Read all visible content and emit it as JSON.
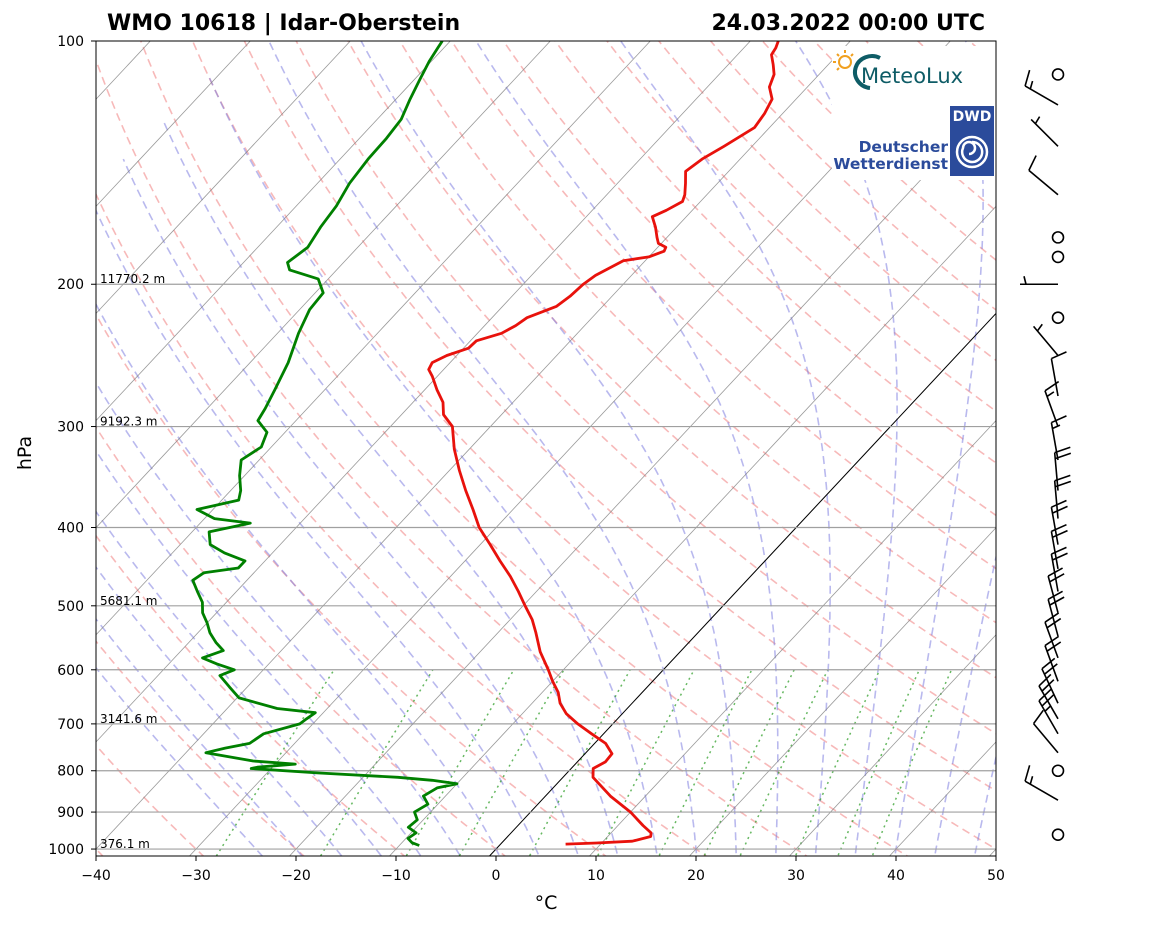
{
  "colors": {
    "temperature": "#e8120c",
    "dewpoint": "#008000",
    "isotherm": "#808080",
    "dry_adiabat": "#f08080",
    "moist_adiabat": "#8080e0",
    "mixing_ratio": "#33a02c",
    "zero_isotherm": "#000000"
  },
  "chart_data": {
    "type": "line",
    "diagram": "skew-T log-p",
    "title_left": "WMO 10618 | Idar-Oberstein",
    "title_right": "24.03.2022 00:00 UTC",
    "xlabel": "°C",
    "ylabel": "hPa",
    "xlim": [
      -40,
      50
    ],
    "ylim": [
      1020,
      100
    ],
    "y_scale": "log",
    "grid": true,
    "x_ticks": [
      "−40",
      "−30",
      "−20",
      "−10",
      "0",
      "10",
      "20",
      "30",
      "40",
      "50"
    ],
    "y_ticks": [
      "100",
      "200",
      "300",
      "400",
      "500",
      "600",
      "700",
      "800",
      "900",
      "1000"
    ],
    "height_labels": [
      {
        "p": 200,
        "text": "11770.2 m"
      },
      {
        "p": 300,
        "text": "9192.3 m"
      },
      {
        "p": 500,
        "text": "5681.1 m"
      },
      {
        "p": 700,
        "text": "3141.6 m"
      },
      {
        "p": 1000,
        "text": "376.1 m"
      }
    ],
    "series": [
      {
        "key": "temperature",
        "points": [
          [
            986,
            6.5
          ],
          [
            983,
            9.5
          ],
          [
            978,
            12.9
          ],
          [
            965,
            14.3
          ],
          [
            955,
            14.0
          ],
          [
            935,
            12.5
          ],
          [
            900,
            10.0
          ],
          [
            860,
            6.5
          ],
          [
            815,
            3.0
          ],
          [
            795,
            2.2
          ],
          [
            780,
            2.8
          ],
          [
            762,
            2.7
          ],
          [
            740,
            1.1
          ],
          [
            720,
            -1.2
          ],
          [
            700,
            -3.5
          ],
          [
            680,
            -5.6
          ],
          [
            660,
            -7.2
          ],
          [
            640,
            -8.4
          ],
          [
            620,
            -10.0
          ],
          [
            600,
            -11.5
          ],
          [
            570,
            -14.0
          ],
          [
            540,
            -16.2
          ],
          [
            520,
            -17.8
          ],
          [
            500,
            -19.8
          ],
          [
            480,
            -21.8
          ],
          [
            460,
            -24.0
          ],
          [
            440,
            -26.5
          ],
          [
            420,
            -29.0
          ],
          [
            400,
            -31.7
          ],
          [
            380,
            -34.0
          ],
          [
            360,
            -36.5
          ],
          [
            340,
            -39.0
          ],
          [
            320,
            -41.5
          ],
          [
            300,
            -43.8
          ],
          [
            290,
            -45.8
          ],
          [
            280,
            -47.0
          ],
          [
            270,
            -48.8
          ],
          [
            260,
            -50.5
          ],
          [
            255,
            -51.5
          ],
          [
            250,
            -51.8
          ],
          [
            245,
            -51.0
          ],
          [
            240,
            -49.5
          ],
          [
            235,
            -49.4
          ],
          [
            230,
            -47.6
          ],
          [
            225,
            -46.9
          ],
          [
            220,
            -46.5
          ],
          [
            213,
            -44.6
          ],
          [
            207,
            -44.2
          ],
          [
            200,
            -44.0
          ],
          [
            195,
            -43.6
          ],
          [
            187,
            -42.2
          ],
          [
            185,
            -40.0
          ],
          [
            182,
            -39.0
          ],
          [
            180,
            -39.2
          ],
          [
            178,
            -40.3
          ],
          [
            175,
            -41.0
          ],
          [
            170,
            -42.1
          ],
          [
            165,
            -43.4
          ],
          [
            162,
            -42.6
          ],
          [
            158,
            -41.8
          ],
          [
            155,
            -42.2
          ],
          [
            150,
            -43.2
          ],
          [
            145,
            -44.3
          ],
          [
            140,
            -43.8
          ],
          [
            135,
            -42.8
          ],
          [
            128,
            -41.5
          ],
          [
            123,
            -41.8
          ],
          [
            118,
            -42.4
          ],
          [
            114,
            -43.8
          ],
          [
            110,
            -44.5
          ],
          [
            107,
            -45.5
          ],
          [
            104,
            -46.6
          ],
          [
            102,
            -46.8
          ],
          [
            100,
            -47.2
          ]
        ]
      },
      {
        "key": "dewpoint",
        "points": [
          [
            990,
            -8.0
          ],
          [
            982,
            -9.0
          ],
          [
            970,
            -9.8
          ],
          [
            955,
            -9.5
          ],
          [
            940,
            -10.8
          ],
          [
            920,
            -10.6
          ],
          [
            900,
            -11.6
          ],
          [
            880,
            -11.0
          ],
          [
            860,
            -12.2
          ],
          [
            840,
            -11.6
          ],
          [
            830,
            -10.0
          ],
          [
            822,
            -12.8
          ],
          [
            815,
            -16.5
          ],
          [
            805,
            -25.0
          ],
          [
            795,
            -32.0
          ],
          [
            792,
            -31.5
          ],
          [
            785,
            -28.0
          ],
          [
            778,
            -32.5
          ],
          [
            760,
            -38.0
          ],
          [
            750,
            -36.5
          ],
          [
            740,
            -34.5
          ],
          [
            720,
            -34.0
          ],
          [
            700,
            -31.3
          ],
          [
            690,
            -31.1
          ],
          [
            678,
            -30.8
          ],
          [
            670,
            -35.0
          ],
          [
            650,
            -39.8
          ],
          [
            630,
            -41.8
          ],
          [
            610,
            -43.8
          ],
          [
            600,
            -42.9
          ],
          [
            590,
            -45.2
          ],
          [
            580,
            -47.2
          ],
          [
            568,
            -45.8
          ],
          [
            555,
            -47.3
          ],
          [
            540,
            -48.8
          ],
          [
            525,
            -50.0
          ],
          [
            510,
            -51.4
          ],
          [
            495,
            -52.4
          ],
          [
            480,
            -53.9
          ],
          [
            465,
            -55.4
          ],
          [
            455,
            -55.0
          ],
          [
            449,
            -52.0
          ],
          [
            440,
            -52.0
          ],
          [
            430,
            -54.8
          ],
          [
            420,
            -57.0
          ],
          [
            405,
            -58.3
          ],
          [
            395,
            -55.0
          ],
          [
            390,
            -59.0
          ],
          [
            380,
            -61.6
          ],
          [
            370,
            -58.3
          ],
          [
            360,
            -59.0
          ],
          [
            345,
            -60.5
          ],
          [
            330,
            -61.8
          ],
          [
            318,
            -61.0
          ],
          [
            305,
            -61.8
          ],
          [
            295,
            -63.8
          ],
          [
            285,
            -64.2
          ],
          [
            270,
            -65.0
          ],
          [
            250,
            -66.2
          ],
          [
            230,
            -67.9
          ],
          [
            215,
            -69.0
          ],
          [
            205,
            -69.2
          ],
          [
            197,
            -71.0
          ],
          [
            192,
            -74.7
          ],
          [
            188,
            -75.6
          ],
          [
            180,
            -75.0
          ],
          [
            170,
            -75.6
          ],
          [
            160,
            -76.0
          ],
          [
            150,
            -76.8
          ],
          [
            140,
            -77.2
          ],
          [
            132,
            -77.3
          ],
          [
            125,
            -77.6
          ],
          [
            118,
            -78.6
          ],
          [
            112,
            -79.4
          ],
          [
            106,
            -80.2
          ],
          [
            102,
            -80.6
          ],
          [
            100,
            -80.8
          ]
        ]
      }
    ]
  },
  "logos": {
    "meteolux": {
      "name": "MeteoLux",
      "icon": "sun-swirl-icon"
    },
    "dwd": {
      "badge": "DWD",
      "line1": "Deutscher",
      "line2": "Wetterdienst",
      "icon": "dwd-spiral-icon"
    }
  },
  "wind_barbs": [
    {
      "p": 110,
      "dir": 340,
      "speed": 0
    },
    {
      "p": 120,
      "dir": 300,
      "speed": 15
    },
    {
      "p": 135,
      "dir": 315,
      "speed": 5
    },
    {
      "p": 155,
      "dir": 310,
      "speed": 10
    },
    {
      "p": 175,
      "dir": 0,
      "speed": 0
    },
    {
      "p": 185,
      "dir": 0,
      "speed": 0
    },
    {
      "p": 200,
      "dir": 270,
      "speed": 5
    },
    {
      "p": 220,
      "dir": 0,
      "speed": 0
    },
    {
      "p": 245,
      "dir": 320,
      "speed": 5
    },
    {
      "p": 275,
      "dir": 350,
      "speed": 10
    },
    {
      "p": 300,
      "dir": 340,
      "speed": 15
    },
    {
      "p": 330,
      "dir": 350,
      "speed": 15
    },
    {
      "p": 360,
      "dir": 355,
      "speed": 20
    },
    {
      "p": 390,
      "dir": 355,
      "speed": 20
    },
    {
      "p": 420,
      "dir": 350,
      "speed": 20
    },
    {
      "p": 450,
      "dir": 350,
      "speed": 20
    },
    {
      "p": 480,
      "dir": 350,
      "speed": 20
    },
    {
      "p": 510,
      "dir": 345,
      "speed": 20
    },
    {
      "p": 545,
      "dir": 345,
      "speed": 20
    },
    {
      "p": 580,
      "dir": 340,
      "speed": 20
    },
    {
      "p": 620,
      "dir": 340,
      "speed": 20
    },
    {
      "p": 660,
      "dir": 335,
      "speed": 20
    },
    {
      "p": 690,
      "dir": 330,
      "speed": 20
    },
    {
      "p": 720,
      "dir": 330,
      "speed": 25
    },
    {
      "p": 760,
      "dir": 320,
      "speed": 10
    },
    {
      "p": 800,
      "dir": 0,
      "speed": 0
    },
    {
      "p": 870,
      "dir": 300,
      "speed": 15
    },
    {
      "p": 960,
      "dir": 0,
      "speed": 0
    }
  ]
}
